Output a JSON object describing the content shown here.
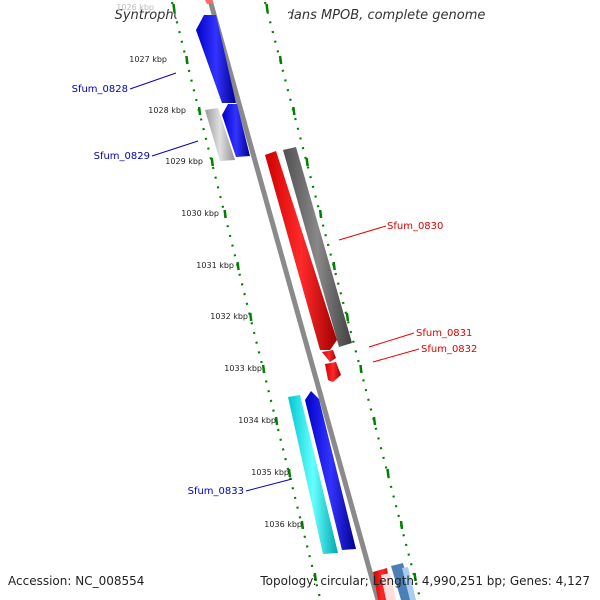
{
  "title": "Syntrophobacter fumaroxidans MPOB, complete genome",
  "accession": "Accession: NC_008554",
  "stats": "Topology: circular; Length: 4,990,251 bp; Genes: 4,127",
  "ticks": [
    "1026 kbp",
    "1027 kbp",
    "1028 kbp",
    "1029 kbp",
    "1030 kbp",
    "1031 kbp",
    "1032 kbp",
    "1033 kbp",
    "1034 kbp",
    "1035 kbp",
    "1036 kbp"
  ],
  "genes": [
    {
      "name": "Sfum_0828",
      "color": "#0000ee",
      "strand": "-"
    },
    {
      "name": "Sfum_0829",
      "color": "#0000aa",
      "strand": "-"
    },
    {
      "name": "Sfum_0830",
      "color": "#ee0000",
      "strand": "+"
    },
    {
      "name": "Sfum_0831",
      "color": "#ee0000",
      "strand": "+"
    },
    {
      "name": "Sfum_0832",
      "color": "#ee0000",
      "strand": "+"
    },
    {
      "name": "Sfum_0833",
      "color": "#0000aa",
      "strand": "-"
    }
  ],
  "colors": {
    "forward": "#ff0000",
    "reverse": "#0000ee",
    "tick": "#008000",
    "backbone": "#808080",
    "cyan": "#00e5ee",
    "grey_gene": "#666666"
  }
}
